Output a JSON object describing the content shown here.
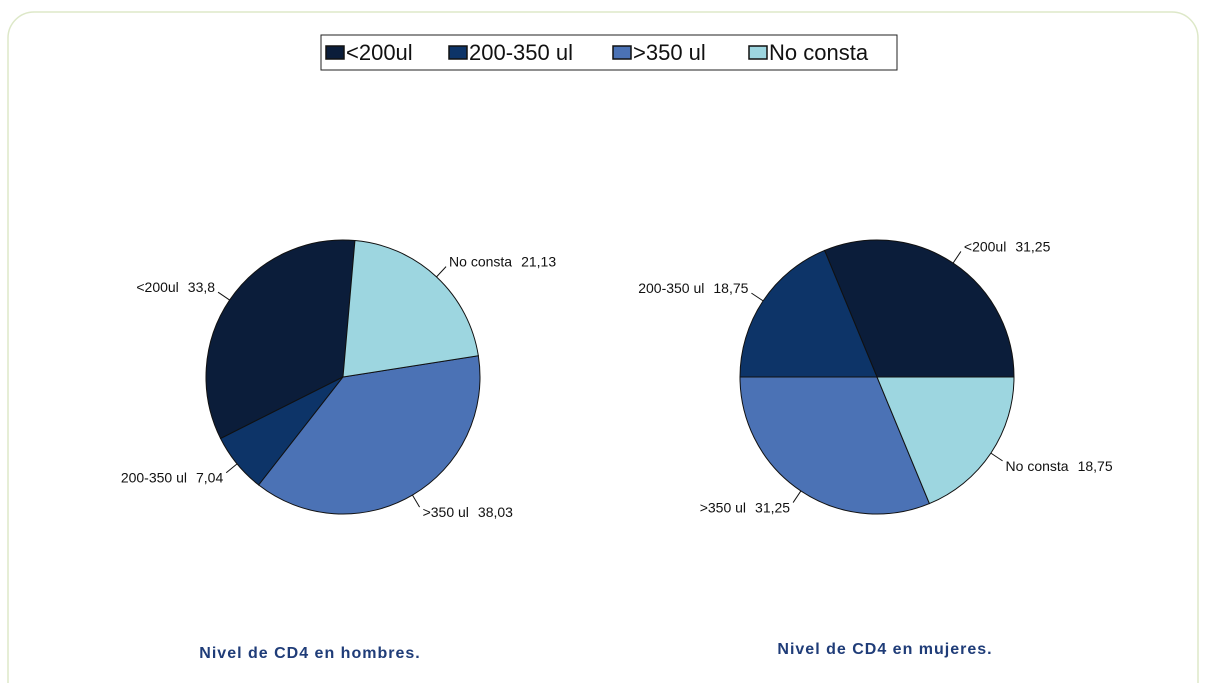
{
  "chart_data": [
    {
      "type": "pie",
      "title": "Nivel de CD4 en hombres.",
      "categories": [
        "<200ul",
        "200-350 ul",
        ">350 ul",
        "No consta"
      ],
      "values": [
        33.8,
        7.04,
        38.03,
        21.13
      ],
      "value_labels": [
        "33,8",
        "7,04",
        "38,03",
        "21,13"
      ],
      "colors": [
        "#0b1d3a",
        "#0d3468",
        "#4b72b5",
        "#9dd6e0"
      ]
    },
    {
      "type": "pie",
      "title": "Nivel de CD4 en mujeres.",
      "categories": [
        "<200ul",
        "200-350 ul",
        ">350 ul",
        "No consta"
      ],
      "values": [
        31.25,
        18.75,
        31.25,
        18.75
      ],
      "value_labels": [
        "31,25",
        "18,75",
        "31,25",
        "18,75"
      ],
      "colors": [
        "#0b1d3a",
        "#0d3468",
        "#4b72b5",
        "#9dd6e0"
      ]
    }
  ]
}
